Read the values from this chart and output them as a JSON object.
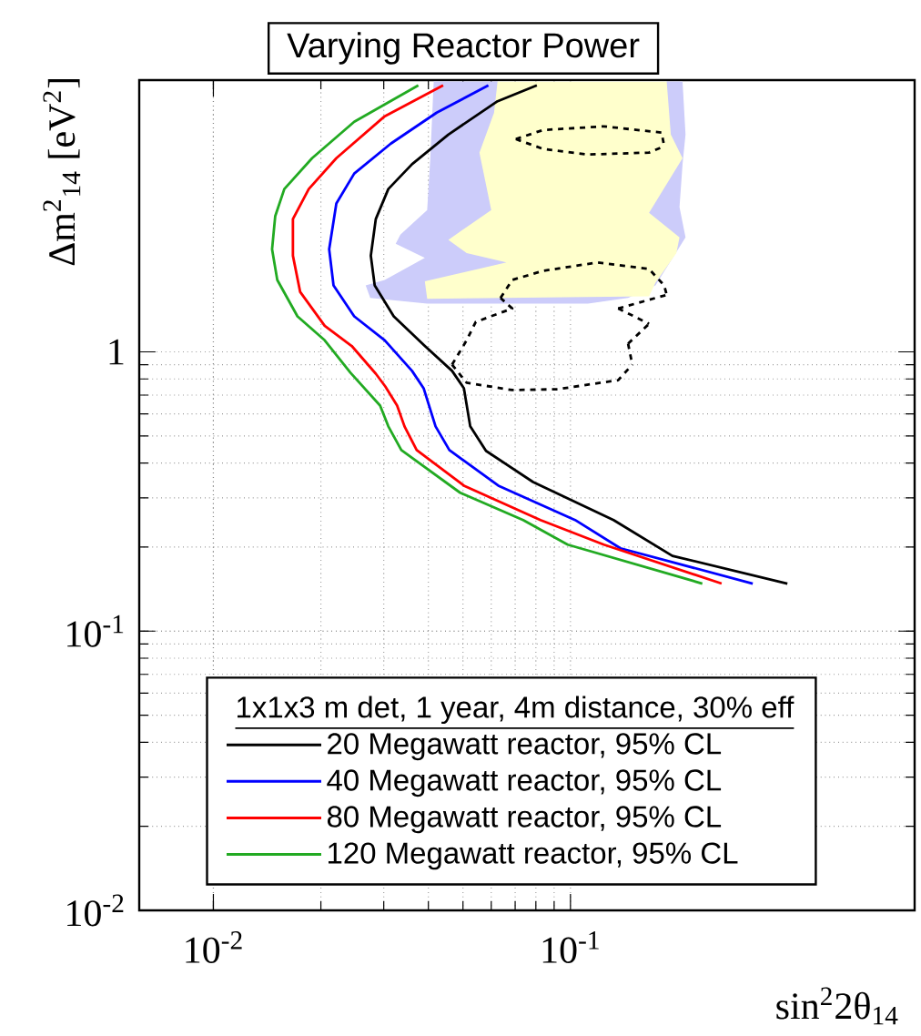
{
  "chart_data": {
    "type": "line",
    "title": "Varying Reactor Power",
    "xlabel": "sin$^{2}$2θ$_{14}$",
    "ylabel": "Δm$^{2}$$_{14}$ [eV$^{2}$]",
    "legend_title": "1x1x3 m det, 1 year, 4m distance, 30% eff",
    "xlim": [
      0.0062,
      0.92
    ],
    "ylim": [
      0.01,
      9.4
    ],
    "xticks": [
      {
        "value": 0.01,
        "label": "10$^{-2}$"
      },
      {
        "value": 0.1,
        "label": "10$^{-1}$"
      }
    ],
    "yticks": [
      {
        "value": 0.01,
        "label": "10$^{-2}$"
      },
      {
        "value": 0.1,
        "label": "10$^{-1}$"
      },
      1
    ],
    "log": "xy",
    "grid": true,
    "legend": "bottom",
    "marker": "none",
    "series": [
      {
        "type": "area",
        "color": "#ccccfa",
        "x": [
          0.0414,
          0.0405,
          0.0397,
          0.0334,
          0.0324,
          0.0391,
          0.0302,
          0.0267,
          0.0275,
          0.0397,
          0.112,
          0.145,
          0.173,
          0.176,
          0.21,
          0.202,
          0.206,
          0.21,
          0.206
        ],
        "values": [
          9.3,
          4.94,
          3.22,
          2.63,
          2.44,
          2.17,
          1.81,
          1.73,
          1.56,
          1.49,
          1.49,
          1.56,
          1.73,
          null,
          2.57,
          3.3,
          4.69,
          6.0,
          9.3
        ]
      },
      {
        "type": "area",
        "color": "#ffffcc",
        "x": [
          0.0625,
          0.0611,
          0.0556,
          0.06,
          0.0455,
          0.0512,
          0.0662,
          0.0391,
          0.0397,
          0.166,
          0.173,
          0.198,
          0.202,
          0.166,
          0.206,
          0.191,
          0.186
        ],
        "values": [
          9.3,
          7.19,
          5.17,
          3.22,
          2.52,
          2.26,
          2.09,
          1.79,
          1.55,
          1.58,
          1.77,
          2.26,
          2.57,
          3.15,
          4.94,
          6.0,
          9.3
        ]
      },
      {
        "name": "20 Megawatt reactor, 95% CL",
        "color": "#000000",
        "x": [
          0.0805,
          0.0625,
          0.0455,
          0.036,
          0.0309,
          0.0285,
          0.0276,
          0.0283,
          0.032,
          0.0391,
          0.0466,
          0.0503,
          0.0524,
          0.058,
          0.0786,
          0.132,
          0.193,
          0.405
        ],
        "values": [
          9.0,
          7.9,
          6.0,
          4.7,
          3.83,
          2.99,
          2.21,
          1.73,
          1.34,
          1.05,
          0.855,
          0.741,
          0.541,
          0.442,
          0.342,
          0.25,
          0.186,
          0.148
        ]
      },
      {
        "name": "40 Megawatt reactor, 95% CL",
        "color": "#0000ff",
        "x": [
          0.0589,
          0.0422,
          0.0314,
          0.0248,
          0.0221,
          0.0211,
          0.0217,
          0.0248,
          0.0302,
          0.036,
          0.0388,
          0.0419,
          0.0458,
          0.0628,
          0.103,
          0.138,
          0.324
        ],
        "values": [
          9.0,
          7.19,
          5.57,
          4.35,
          3.4,
          2.33,
          1.73,
          1.34,
          1.1,
          0.855,
          0.741,
          0.541,
          0.445,
          0.332,
          0.25,
          0.198,
          0.148
        ]
      },
      {
        "name": "80 Megawatt reactor, 95% CL",
        "color": "#ff0000",
        "x": [
          0.044,
          0.0302,
          0.0221,
          0.0185,
          0.0167,
          0.0167,
          0.0175,
          0.0205,
          0.0244,
          0.0285,
          0.0303,
          0.0327,
          0.0343,
          0.0371,
          0.0503,
          0.0824,
          0.124,
          0.265
        ],
        "values": [
          9.0,
          6.98,
          4.94,
          3.83,
          2.99,
          2.21,
          1.64,
          1.24,
          1.05,
          0.835,
          0.752,
          0.642,
          0.541,
          0.445,
          0.332,
          0.25,
          0.204,
          0.148
        ]
      },
      {
        "name": "120 Megawatt reactor, 95% CL",
        "color": "#22aa22",
        "x": [
          0.0375,
          0.0248,
          0.0189,
          0.0158,
          0.0149,
          0.0146,
          0.0151,
          0.0172,
          0.0205,
          0.0242,
          0.0293,
          0.0309,
          0.0336,
          0.0491,
          0.0737,
          0.0982,
          0.234
        ],
        "values": [
          9.0,
          6.67,
          4.94,
          3.83,
          3.06,
          2.33,
          1.81,
          1.34,
          1.1,
          0.842,
          0.642,
          0.541,
          0.445,
          0.313,
          0.25,
          0.204,
          0.148
        ]
      },
      {
        "type": "line",
        "line_style": "dashed",
        "color": "#000000",
        "x": [
          0.0703,
          0.0838,
          0.124,
          0.18,
          0.183
        ],
        "values": [
          5.78,
          6.23,
          6.42,
          6.1,
          5.45
        ]
      },
      {
        "type": "line",
        "line_style": "dashed",
        "color": "#000000",
        "x": [
          0.0703,
          0.0838,
          0.112,
          0.166,
          0.183
        ],
        "values": [
          5.78,
          5.33,
          5.09,
          5.17,
          5.45
        ]
      },
      {
        "type": "line",
        "line_style": "dashed",
        "color": "#000000",
        "x": [
          0.0637,
          0.0687,
          0.0838,
          0.119,
          0.166,
          0.183,
          0.186
        ],
        "values": [
          1.56,
          1.81,
          1.95,
          2.09,
          1.98,
          1.73,
          1.6
        ]
      },
      {
        "type": "line",
        "line_style": "dashed",
        "color": "#000000",
        "x": [
          0.136,
          0.186
        ],
        "values": [
          1.43,
          1.6
        ]
      },
      {
        "type": "line",
        "line_style": "dashed",
        "color": "#000000",
        "x": [
          0.136,
          0.166
        ],
        "values": [
          1.43,
          1.26
        ]
      },
      {
        "type": "line",
        "line_style": "dashed",
        "color": "#000000",
        "x": [
          0.145,
          0.166
        ],
        "values": [
          1.07,
          1.26
        ]
      },
      {
        "type": "line",
        "line_style": "dashed",
        "color": "#000000",
        "x": [
          0.145,
          0.149
        ],
        "values": [
          1.07,
          0.9
        ]
      },
      {
        "type": "line",
        "line_style": "dashed",
        "color": "#000000",
        "x": [
          0.0466,
          0.0512,
          0.0687,
          0.092,
          0.136,
          0.149
        ],
        "values": [
          0.9,
          0.775,
          0.73,
          0.735,
          0.792,
          0.9
        ]
      },
      {
        "type": "line",
        "line_style": "dashed",
        "color": "#000000",
        "x": [
          0.0466,
          0.0512,
          0.0543,
          0.0687,
          0.0637
        ],
        "values": [
          0.9,
          1.1,
          1.28,
          1.43,
          1.56
        ]
      }
    ]
  }
}
